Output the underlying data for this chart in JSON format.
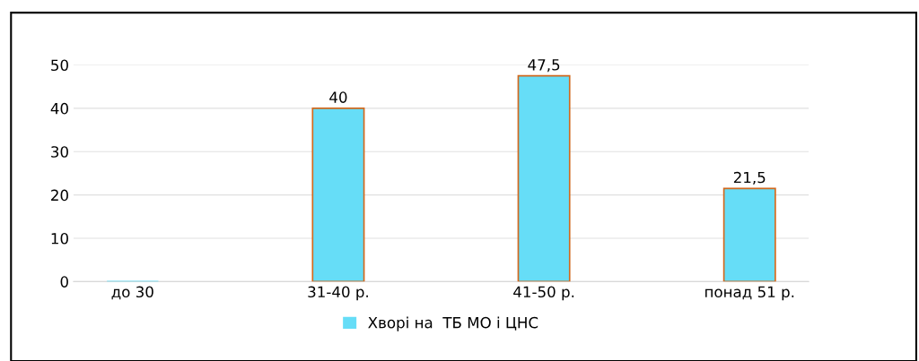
{
  "chart_data": {
    "type": "bar",
    "categories": [
      "до 30",
      "31-40 р.",
      "41-50 р.",
      "понад 51 р."
    ],
    "series": [
      {
        "name": "Хворі на  ТБ МО і ЦНС",
        "color": "#66ddf7",
        "values": [
          0,
          40,
          47.5,
          21.5
        ],
        "value_labels": [
          null,
          "40",
          "47,5",
          "21,5"
        ]
      }
    ],
    "ylim": [
      0,
      50
    ],
    "yticks": [
      0,
      10,
      20,
      30,
      40,
      50
    ],
    "grid": "y",
    "legend": "bottom"
  }
}
